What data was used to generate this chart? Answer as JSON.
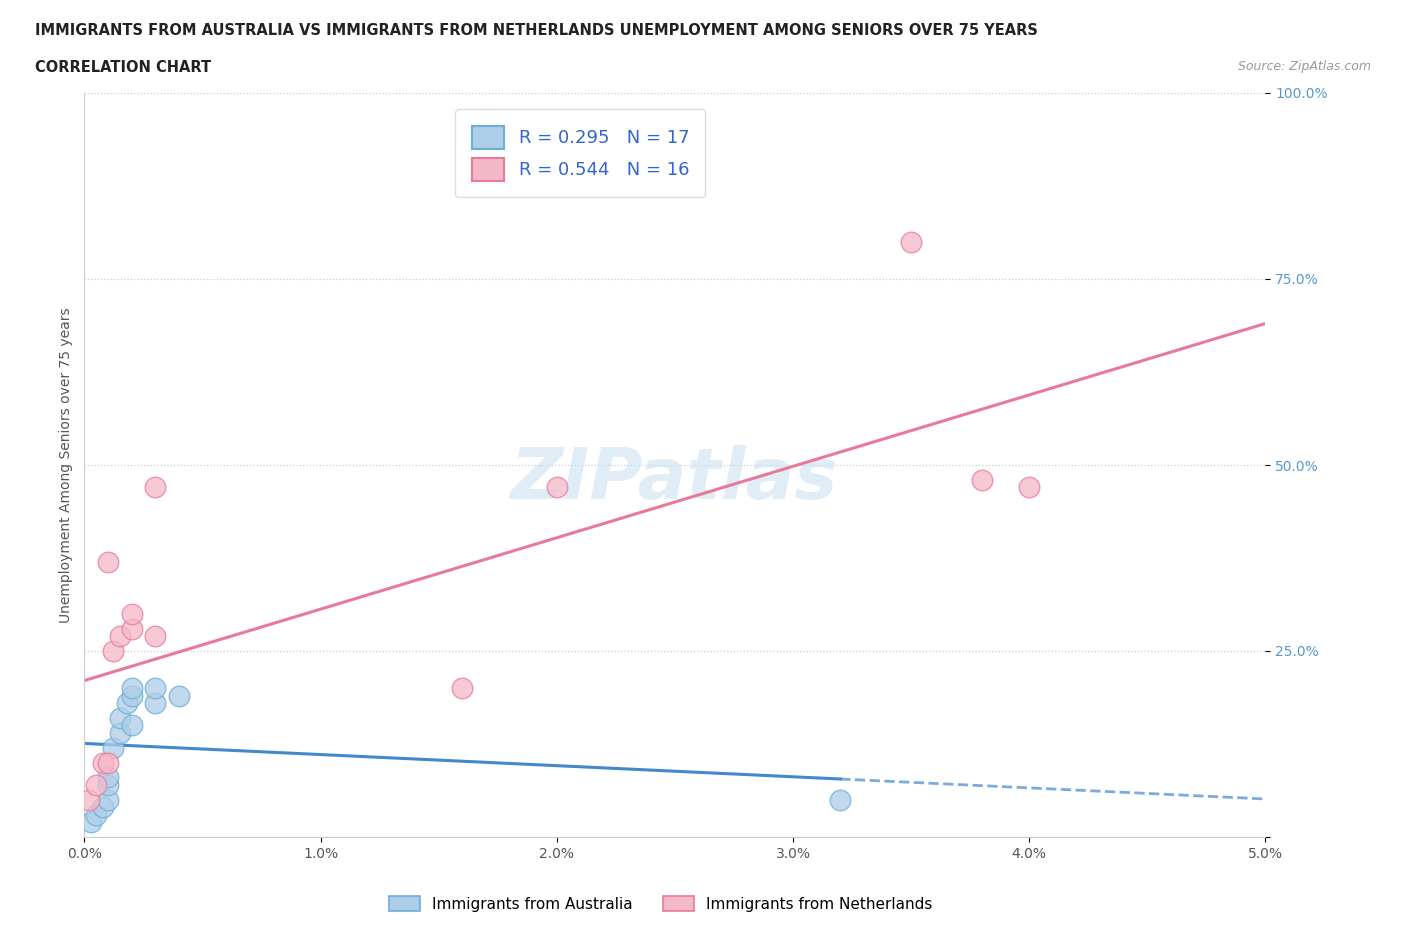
{
  "title_line1": "IMMIGRANTS FROM AUSTRALIA VS IMMIGRANTS FROM NETHERLANDS UNEMPLOYMENT AMONG SENIORS OVER 75 YEARS",
  "title_line2": "CORRELATION CHART",
  "source": "Source: ZipAtlas.com",
  "ylabel": "Unemployment Among Seniors over 75 years",
  "legend_bottom": [
    "Immigrants from Australia",
    "Immigrants from Netherlands"
  ],
  "R_australia": 0.295,
  "N_australia": 17,
  "R_netherlands": 0.544,
  "N_netherlands": 16,
  "xlim": [
    0.0,
    0.05
  ],
  "ylim": [
    0.0,
    1.0
  ],
  "xticks": [
    0.0,
    0.01,
    0.02,
    0.03,
    0.04,
    0.05
  ],
  "yticks": [
    0.0,
    0.25,
    0.5,
    0.75,
    1.0
  ],
  "xtick_labels": [
    "0.0%",
    "1.0%",
    "2.0%",
    "3.0%",
    "4.0%",
    "5.0%"
  ],
  "ytick_labels": [
    "",
    "25.0%",
    "50.0%",
    "75.0%",
    "100.0%"
  ],
  "color_australia": "#aecde8",
  "color_netherlands": "#f4b8c8",
  "edge_australia": "#6aafd6",
  "edge_netherlands": "#e87a99",
  "line_australia_color": "#4488cc",
  "line_netherlands_color": "#e87a99",
  "watermark_color": "#c8dff0",
  "australia_x": [
    0.0003,
    0.0005,
    0.0008,
    0.001,
    0.001,
    0.001,
    0.0012,
    0.0015,
    0.0015,
    0.0018,
    0.002,
    0.002,
    0.002,
    0.003,
    0.003,
    0.004,
    0.032
  ],
  "australia_y": [
    0.02,
    0.03,
    0.04,
    0.05,
    0.07,
    0.08,
    0.12,
    0.14,
    0.16,
    0.18,
    0.15,
    0.19,
    0.2,
    0.18,
    0.2,
    0.19,
    0.05
  ],
  "netherlands_x": [
    0.0002,
    0.0005,
    0.0008,
    0.001,
    0.001,
    0.0012,
    0.0015,
    0.002,
    0.002,
    0.003,
    0.003,
    0.016,
    0.02,
    0.035,
    0.038,
    0.04
  ],
  "netherlands_y": [
    0.05,
    0.07,
    0.1,
    0.37,
    0.1,
    0.25,
    0.27,
    0.28,
    0.3,
    0.27,
    0.47,
    0.2,
    0.47,
    0.8,
    0.48,
    0.47
  ]
}
